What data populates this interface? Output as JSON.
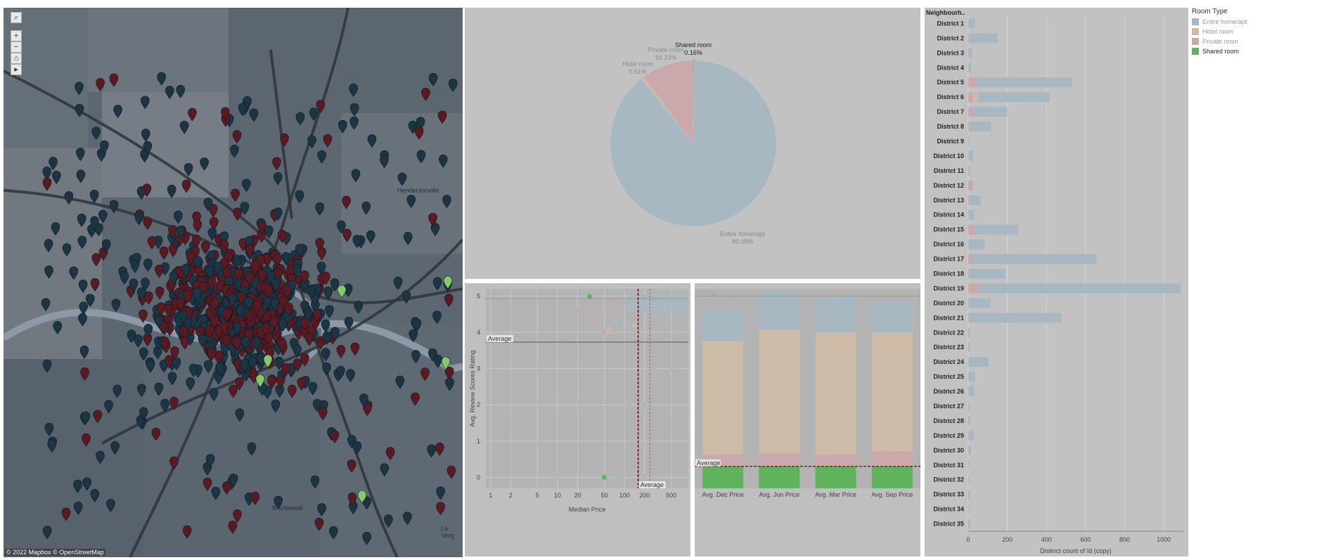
{
  "colors": {
    "entire": "#a7b8c2",
    "hotel": "#cbbba7",
    "private": "#caa8ab",
    "shared": "#5fb35c",
    "map_dark_pin": "#1b3545",
    "map_red_pin": "#5a1a22",
    "map_green_pin": "#86c86a"
  },
  "map": {
    "credit": "© 2022 Mapbox  © OpenStreetMap",
    "labels": [
      "Hendersonville",
      "Brentwood",
      "La Verg"
    ],
    "controls": [
      "search-icon",
      "plus-icon",
      "minus-icon",
      "home-icon",
      "play-icon"
    ],
    "control_glyphs": [
      "⌕",
      "+",
      "−",
      "⌂",
      "▸"
    ]
  },
  "legend": {
    "title": "Room Type",
    "items": [
      {
        "label": "Entire home/apt",
        "key": "entire",
        "active": false
      },
      {
        "label": "Hotel room",
        "key": "hotel",
        "active": false
      },
      {
        "label": "Private room",
        "key": "private",
        "active": false
      },
      {
        "label": "Shared room",
        "key": "shared",
        "active": true
      }
    ]
  },
  "chart_data": [
    {
      "type": "pie",
      "slices": [
        {
          "label": "Entire home/apt",
          "pct_label": "89.09%",
          "value": 89.09,
          "key": "entire"
        },
        {
          "label": "Hotel room",
          "pct_label": "0.51%",
          "value": 0.51,
          "key": "hotel"
        },
        {
          "label": "Private room",
          "pct_label": "10.23%",
          "value": 10.23,
          "key": "private"
        },
        {
          "label": "Shared room",
          "pct_label": "0.16%",
          "value": 0.16,
          "key": "shared"
        }
      ],
      "highlighted": "Shared room"
    },
    {
      "type": "scatter",
      "xlabel": "Median Price",
      "ylabel": "Avg. Review Scores Rating",
      "x_scale": "log",
      "xlim": [
        0.85,
        900
      ],
      "ylim": [
        -0.3,
        5.2
      ],
      "x_ticks": [
        1,
        2,
        5,
        10,
        20,
        50,
        100,
        200,
        500
      ],
      "y_ticks": [
        0,
        1,
        2,
        3,
        4,
        5
      ],
      "avg_y": 3.73,
      "avg_y_shared": 4.93,
      "avg_x": 160,
      "avg_x_2": 240,
      "avg_label": "Average",
      "points": {
        "entire": [
          [
            150,
            4.8
          ],
          [
            200,
            4.85
          ],
          [
            250,
            4.9
          ],
          [
            300,
            4.75
          ],
          [
            400,
            4.7
          ],
          [
            500,
            4.85
          ],
          [
            600,
            4.6
          ],
          [
            350,
            4.95
          ],
          [
            180,
            4.7
          ],
          [
            220,
            4.55
          ],
          [
            120,
            4.6
          ],
          [
            90,
            4.5
          ],
          [
            260,
            4.4
          ],
          [
            320,
            4.55
          ],
          [
            450,
            4.9
          ],
          [
            700,
            4.9
          ],
          [
            800,
            4.4
          ],
          [
            110,
            4.2
          ],
          [
            140,
            4.05
          ],
          [
            80,
            4.3
          ],
          [
            70,
            4.4
          ],
          [
            300,
            4.0
          ],
          [
            250,
            3.0
          ],
          [
            280,
            3.0
          ],
          [
            500,
            3.0
          ],
          [
            550,
            3.0
          ],
          [
            200,
            2.0
          ],
          [
            100,
            2.0
          ],
          [
            120,
            2.0
          ],
          [
            130,
            1.0
          ],
          [
            10,
            0
          ],
          [
            75,
            0
          ],
          [
            95,
            0
          ],
          [
            200,
            0
          ],
          [
            250,
            0
          ],
          [
            420,
            4.25
          ],
          [
            600,
            4.0
          ],
          [
            160,
            3.9
          ]
        ],
        "hotel": [
          [
            55,
            4.0
          ],
          [
            60,
            4.1
          ],
          [
            140,
            4.2
          ]
        ],
        "private": [
          [
            30,
            4.7
          ],
          [
            45,
            4.6
          ],
          [
            60,
            4.7
          ],
          [
            40,
            4.4
          ],
          [
            25,
            4.5
          ],
          [
            80,
            4.5
          ],
          [
            100,
            4.8
          ],
          [
            70,
            4.9
          ],
          [
            120,
            4.6
          ],
          [
            50,
            4.0
          ],
          [
            90,
            2.5
          ],
          [
            270,
            2.75
          ],
          [
            20,
            4.6
          ]
        ],
        "shared": [
          [
            30,
            4.98
          ],
          [
            190,
            4.95
          ],
          [
            280,
            4.92
          ],
          [
            50,
            0
          ]
        ]
      }
    },
    {
      "type": "bar",
      "stacked": true,
      "categories": [
        "Avg. Dec Price",
        "Avg. Jun Price",
        "Avg. Mar Price",
        "Avg. Sep Price"
      ],
      "ylim": [
        0,
        1.0
      ],
      "series": [
        {
          "key": "shared",
          "values": [
            0.11,
            0.11,
            0.11,
            0.11
          ]
        },
        {
          "key": "private",
          "values": [
            0.06,
            0.065,
            0.06,
            0.075
          ]
        },
        {
          "key": "hotel",
          "values": [
            0.57,
            0.62,
            0.61,
            0.595
          ]
        },
        {
          "key": "entire",
          "values": [
            0.15,
            0.19,
            0.18,
            0.16
          ]
        }
      ],
      "avg_lines": [
        {
          "label": "Average",
          "y": 0.11
        },
        {
          "label": "Average",
          "y": 0.963
        }
      ]
    },
    {
      "type": "bar",
      "orientation": "horizontal",
      "stacked": true,
      "y_header": "Neighbourh..",
      "xlabel": "Distinct count of Id (copy)",
      "xlim": [
        0,
        1100
      ],
      "x_ticks": [
        0,
        200,
        400,
        600,
        800,
        1000
      ],
      "categories": [
        "District 1",
        "District 2",
        "District 3",
        "District 4",
        "District 5",
        "District 6",
        "District 7",
        "District 8",
        "District 9",
        "District 10",
        "District 11",
        "District 12",
        "District 13",
        "District 14",
        "District 15",
        "District 16",
        "District 17",
        "District 18",
        "District 19",
        "District 20",
        "District 21",
        "District 22",
        "District 23",
        "District 24",
        "District 25",
        "District 26",
        "District 27",
        "District 28",
        "District 29",
        "District 30",
        "District 31",
        "District 32",
        "District 33",
        "District 34",
        "District 35"
      ],
      "series": [
        {
          "key": "private",
          "values": [
            0,
            5,
            0,
            0,
            40,
            25,
            25,
            8,
            0,
            0,
            0,
            20,
            8,
            0,
            35,
            0,
            20,
            5,
            60,
            5,
            5,
            0,
            0,
            0,
            0,
            5,
            0,
            0,
            5,
            0,
            0,
            0,
            8,
            0,
            0
          ]
        },
        {
          "key": "hotel",
          "values": [
            0,
            0,
            0,
            0,
            0,
            25,
            0,
            0,
            0,
            0,
            0,
            0,
            0,
            0,
            0,
            0,
            0,
            0,
            0,
            0,
            0,
            0,
            0,
            0,
            0,
            0,
            0,
            0,
            0,
            0,
            0,
            0,
            0,
            0,
            0
          ]
        },
        {
          "key": "entire",
          "values": [
            35,
            145,
            20,
            15,
            490,
            365,
            175,
            108,
            3,
            25,
            10,
            5,
            55,
            30,
            220,
            85,
            635,
            185,
            1025,
            110,
            470,
            8,
            8,
            105,
            35,
            25,
            5,
            10,
            25,
            15,
            3,
            3,
            0,
            3,
            10
          ]
        }
      ]
    }
  ]
}
